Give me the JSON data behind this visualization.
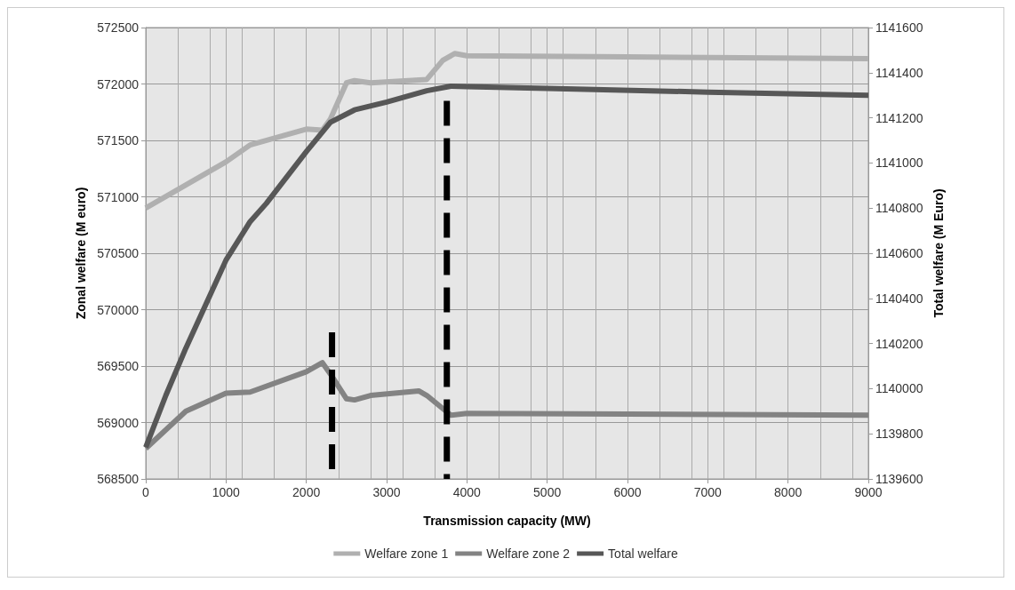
{
  "chart_data": {
    "type": "line",
    "xlabel": "Transmission capacity (MW)",
    "ylabel": "Zonal welfare (M euro)",
    "y2label": "Total welfare (M Euro)",
    "xlim": [
      0,
      9000
    ],
    "xticks": [
      0,
      1000,
      2000,
      3000,
      4000,
      5000,
      6000,
      7000,
      8000,
      9000
    ],
    "ylim": [
      568500,
      572500
    ],
    "yticks": [
      568500,
      569000,
      569500,
      570000,
      570500,
      571000,
      571500,
      572000,
      572500
    ],
    "y2lim": [
      1139600,
      1141600
    ],
    "y2ticks": [
      1139600,
      1139800,
      1140000,
      1140200,
      1140400,
      1140600,
      1140800,
      1141000,
      1141200,
      1141400,
      1141600
    ],
    "grid": true,
    "legend": "bottom",
    "marker": "none",
    "line_style": "solid",
    "series": [
      {
        "name": "Welfare zone 1",
        "color": "#b0b0b0",
        "x": [
          0,
          1000,
          1300,
          2000,
          2200,
          2300,
          2500,
          2600,
          2800,
          3500,
          3700,
          3850,
          4000,
          6000,
          9000
        ],
        "values": [
          570900,
          571310,
          571460,
          571600,
          571590,
          571690,
          572010,
          572030,
          572010,
          572040,
          572210,
          572270,
          572250,
          572240,
          572225
        ]
      },
      {
        "name": "Welfare zone 2",
        "color": "#838383",
        "x": [
          0,
          500,
          1000,
          1300,
          2000,
          2200,
          2300,
          2500,
          2600,
          2800,
          3400,
          3500,
          3800,
          4000,
          6000,
          9000
        ],
        "values": [
          568770,
          569100,
          569260,
          569270,
          569450,
          569530,
          569430,
          569210,
          569200,
          569240,
          569280,
          569240,
          569065,
          569080,
          569075,
          569065
        ]
      },
      {
        "name": "Total welfare",
        "color": "#575757",
        "axis": "y2",
        "x": [
          0,
          250,
          500,
          1000,
          1300,
          1500,
          2000,
          2300,
          2600,
          3000,
          3500,
          3800,
          4000,
          5000,
          7000,
          9000
        ],
        "values": [
          1139740,
          1139970,
          1140180,
          1140570,
          1140740,
          1140820,
          1141050,
          1141180,
          1141235,
          1141270,
          1141320,
          1141340,
          1141338,
          1141330,
          1141314,
          1141300
        ]
      },
      {
        "color": "#000000",
        "line_style": "dashed",
        "x": [
          2320,
          2320
        ],
        "values": [
          569800,
          568500
        ]
      },
      {
        "color": "#000000",
        "line_style": "dashed",
        "x": [
          3750,
          3750
        ],
        "values": [
          571850,
          568500
        ]
      }
    ]
  }
}
